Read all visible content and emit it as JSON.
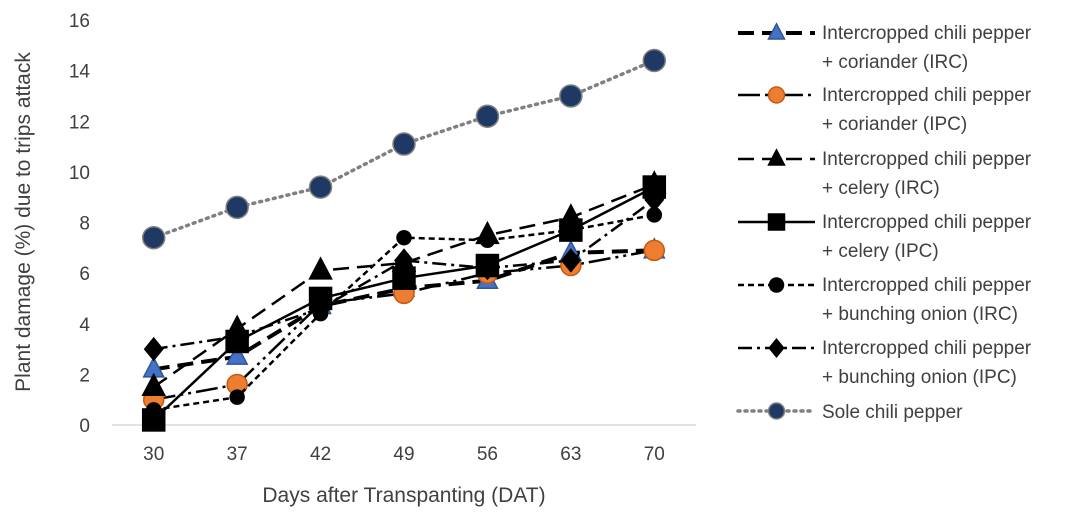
{
  "chart_data": {
    "type": "line",
    "title": "",
    "xlabel": "Days after Transpanting (DAT)",
    "ylabel": "Plant damage (%) due to trips attack",
    "categories": [
      "30",
      "37",
      "42",
      "49",
      "56",
      "63",
      "70"
    ],
    "ylim": [
      0,
      16
    ],
    "yticks": [
      0,
      2,
      4,
      6,
      8,
      10,
      12,
      14,
      16
    ],
    "grid": false,
    "legend_position": "right",
    "series": [
      {
        "name": "Intercropped chili pepper + coriander (IRC)",
        "values": [
          2.2,
          2.7,
          4.7,
          5.4,
          5.7,
          6.8,
          6.9
        ],
        "color": "#000000",
        "dash": "long-dash-thick",
        "marker": "triangle",
        "marker_fill": "#4472c4"
      },
      {
        "name": "Intercropped chili pepper + coriander (IPC)",
        "values": [
          1.0,
          1.6,
          4.8,
          5.2,
          6.0,
          6.3,
          6.9
        ],
        "color": "#000000",
        "dash": "solid-dot",
        "marker": "circle",
        "marker_fill": "#ed7d31"
      },
      {
        "name": "Intercropped chili pepper + celery (IRC)",
        "values": [
          1.5,
          3.8,
          6.1,
          6.4,
          7.5,
          8.2,
          9.5
        ],
        "color": "#000000",
        "dash": "long-dash",
        "marker": "triangle",
        "marker_fill": "#000000"
      },
      {
        "name": "Intercropped chili pepper + celery (IPC)",
        "values": [
          0.2,
          3.3,
          5.0,
          5.8,
          6.3,
          7.7,
          9.4
        ],
        "color": "#000000",
        "dash": "solid",
        "marker": "square",
        "marker_fill": "#000000"
      },
      {
        "name": "Intercropped chili pepper + bunching onion (IRC)",
        "values": [
          0.6,
          1.1,
          4.4,
          7.4,
          7.3,
          7.7,
          8.3
        ],
        "color": "#000000",
        "dash": "short-dash",
        "marker": "circle",
        "marker_fill": "#000000"
      },
      {
        "name": "Intercropped chili pepper + bunching onion (IPC)",
        "values": [
          3.0,
          3.5,
          4.6,
          6.5,
          6.2,
          6.5,
          8.9
        ],
        "color": "#000000",
        "dash": "dash-dot",
        "marker": "diamond",
        "marker_fill": "#000000"
      },
      {
        "name": "Sole chili pepper",
        "values": [
          7.4,
          8.6,
          9.4,
          11.1,
          12.2,
          13.0,
          14.4
        ],
        "color": "#808080",
        "dash": "dotted",
        "marker": "circle",
        "marker_fill": "#203864"
      }
    ]
  },
  "legend": {
    "items": [
      {
        "line1": "Intercropped chili pepper",
        "line2": "+ coriander (IRC)"
      },
      {
        "line1": "Intercropped chili pepper",
        "line2": "+ coriander (IPC)"
      },
      {
        "line1": "Intercropped chili pepper",
        "line2": "+ celery (IRC)"
      },
      {
        "line1": "Intercropped chili pepper",
        "line2": "+ celery (IPC)"
      },
      {
        "line1": "Intercropped chili pepper",
        "line2": "+ bunching onion (IRC)"
      },
      {
        "line1": "Intercropped chili pepper",
        "line2": "+ bunching onion (IPC)"
      },
      {
        "line1": "Sole chili pepper",
        "line2": ""
      }
    ]
  }
}
